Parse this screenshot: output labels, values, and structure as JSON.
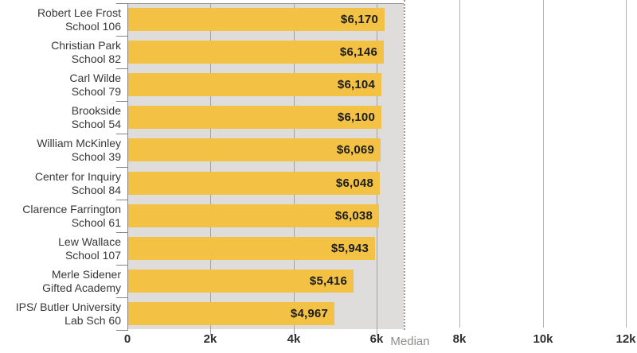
{
  "chart_data": {
    "type": "bar",
    "orientation": "horizontal",
    "title": "",
    "xlabel": "",
    "ylabel": "",
    "xlim": [
      0,
      12300
    ],
    "grid": true,
    "colors": {
      "bar": "#f3c245",
      "band": "#dedddb",
      "value_text": "#1d1d1d",
      "median_text": "#8d8d8b"
    },
    "rows": [
      {
        "name_line1": "Robert Lee Frost",
        "name_line2": "School 106",
        "value": 6170,
        "value_label": "$6,170"
      },
      {
        "name_line1": "Christian Park",
        "name_line2": "School 82",
        "value": 6146,
        "value_label": "$6,146"
      },
      {
        "name_line1": "Carl Wilde",
        "name_line2": "School 79",
        "value": 6104,
        "value_label": "$6,104"
      },
      {
        "name_line1": "Brookside",
        "name_line2": "School 54",
        "value": 6100,
        "value_label": "$6,100"
      },
      {
        "name_line1": "William McKinley",
        "name_line2": "School 39",
        "value": 6069,
        "value_label": "$6,069"
      },
      {
        "name_line1": "Center for Inquiry",
        "name_line2": "School 84",
        "value": 6048,
        "value_label": "$6,048"
      },
      {
        "name_line1": "Clarence Farrington",
        "name_line2": "School 61",
        "value": 6038,
        "value_label": "$6,038"
      },
      {
        "name_line1": "Lew Wallace",
        "name_line2": "School 107",
        "value": 5943,
        "value_label": "$5,943"
      },
      {
        "name_line1": "Merle Sidener",
        "name_line2": "Gifted Academy",
        "value": 5416,
        "value_label": "$5,416"
      },
      {
        "name_line1": "IPS/ Butler University",
        "name_line2": "Lab Sch 60",
        "value": 4967,
        "value_label": "$4,967"
      }
    ],
    "x_ticks": [
      {
        "value": 0,
        "label": "0"
      },
      {
        "value": 2000,
        "label": "2k"
      },
      {
        "value": 4000,
        "label": "4k"
      },
      {
        "value": 6000,
        "label": "6k"
      },
      {
        "value": 8000,
        "label": "8k"
      },
      {
        "value": 10000,
        "label": "10k"
      },
      {
        "value": 12000,
        "label": "12k"
      }
    ],
    "median_line": {
      "label": "Median",
      "value": 6650
    }
  }
}
